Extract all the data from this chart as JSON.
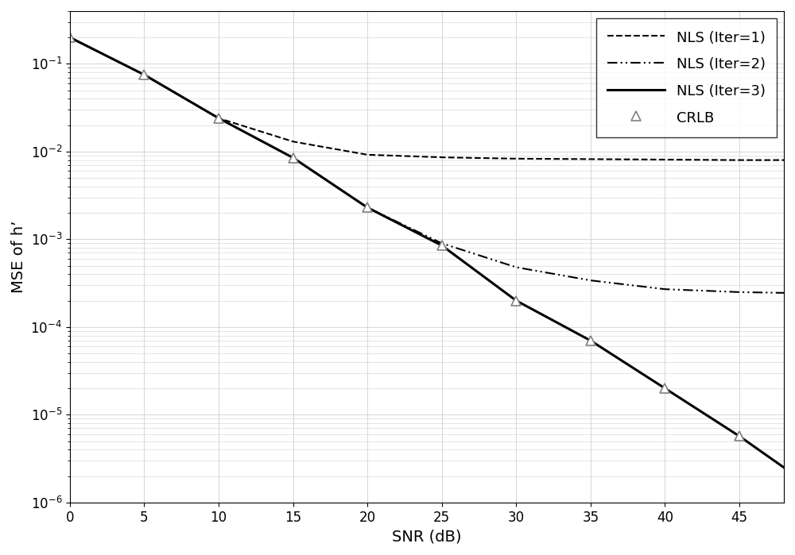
{
  "snr": [
    0,
    5,
    10,
    15,
    20,
    25,
    30,
    35,
    40,
    45,
    48
  ],
  "nls1": [
    0.2,
    0.075,
    0.024,
    0.013,
    0.0092,
    0.0086,
    0.0083,
    0.0082,
    0.0081,
    0.008,
    0.008
  ],
  "nls2": [
    0.2,
    0.075,
    0.024,
    0.0085,
    0.0023,
    0.0009,
    0.00048,
    0.00034,
    0.00027,
    0.00025,
    0.000245
  ],
  "nls3": [
    0.2,
    0.075,
    0.024,
    0.0085,
    0.0023,
    0.00085,
    0.0002,
    7e-05,
    2e-05,
    5.7e-06,
    2.5e-06
  ],
  "crlb_snr": [
    0,
    5,
    10,
    15,
    20,
    25,
    30,
    35,
    40,
    45
  ],
  "crlb": [
    0.2,
    0.075,
    0.024,
    0.0085,
    0.0023,
    0.00085,
    0.0002,
    7e-05,
    2e-05,
    5.7e-06
  ],
  "xlabel": "SNR (dB)",
  "ylabel": "MSE of h’",
  "xlim": [
    0,
    48
  ],
  "ylim": [
    1e-06,
    0.4
  ],
  "xticks": [
    0,
    5,
    10,
    15,
    20,
    25,
    30,
    35,
    40,
    45
  ],
  "grid_color": "#d0d0d0",
  "line_color": "#000000",
  "marker_color": "#808080",
  "legend_labels": [
    "NLS (Iter=1)",
    "NLS (Iter=2)",
    "NLS (Iter=3)",
    "CRLB"
  ],
  "fontsize": 14,
  "tick_fontsize": 12
}
